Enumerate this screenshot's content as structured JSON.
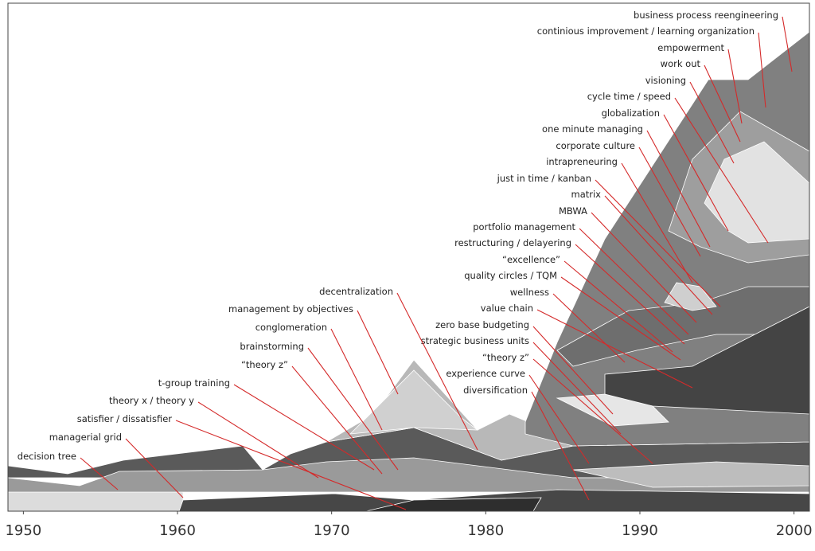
{
  "chart_data": {
    "type": "area",
    "xlim": [
      1949,
      2001
    ],
    "xticks": [
      1950,
      1960,
      1970,
      1980,
      1990,
      2000
    ],
    "labels": [
      "business process reengineering",
      "continious improvement / learning organization",
      "empowerment",
      "work out",
      "visioning",
      "cycle time / speed",
      "globalization",
      "one minute managing",
      "corporate culture",
      "intrapreneuring",
      "just in time / kanban",
      "matrix",
      "MBWA",
      "portfolio management",
      "restructuring / delayering",
      "“excellence”",
      "quality circles / TQM",
      "wellness",
      "value chain",
      "zero base budgeting",
      "strategic business units",
      "“theory z”",
      "experience curve",
      "diversification",
      "decentralization",
      "management by objectives",
      "conglomeration",
      "brainstorming",
      "“theory z”",
      "t-group training",
      "theory x / theory y",
      "satisfier / dissatisfier",
      "managerial grid",
      "decision tree"
    ]
  }
}
